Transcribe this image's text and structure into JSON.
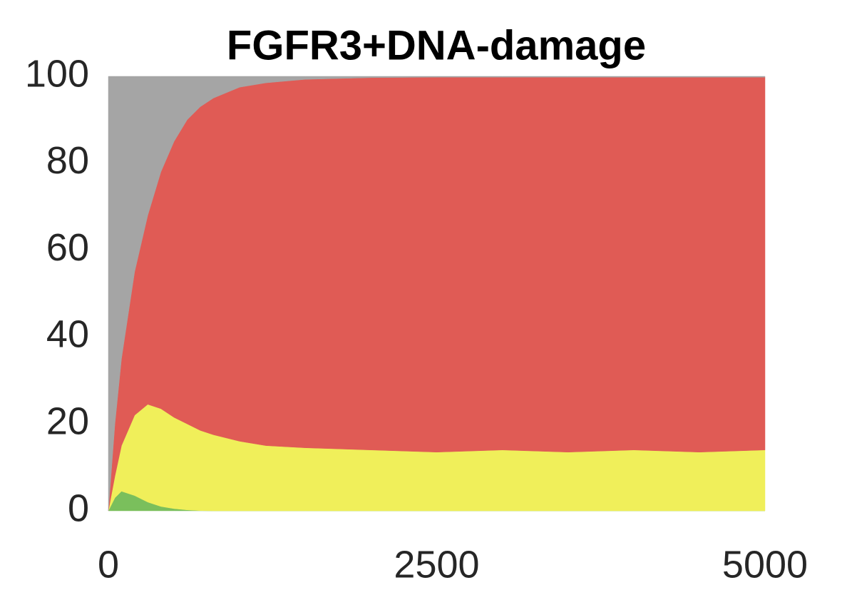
{
  "chart_data": {
    "type": "stacked-area",
    "title": "FGFR3+DNA-damage",
    "x": [
      0,
      50,
      100,
      200,
      300,
      400,
      500,
      600,
      700,
      800,
      1000,
      1200,
      1500,
      2000,
      2500,
      3000,
      3500,
      4000,
      4500,
      5000
    ],
    "series": [
      {
        "color": "#7abf5c",
        "values": [
          0,
          3,
          4.5,
          3.5,
          2,
          1,
          0.5,
          0.2,
          0.05,
          0,
          0,
          0,
          0,
          0,
          0,
          0,
          0,
          0,
          0,
          0
        ]
      },
      {
        "color": "#f0ef5a",
        "values": [
          0,
          5,
          10.5,
          18.5,
          22.5,
          22.5,
          21,
          19.8,
          18.45,
          17.5,
          16,
          15,
          14.5,
          14,
          13.5,
          14,
          13.5,
          14,
          13.5,
          14
        ]
      },
      {
        "color": "#e05b55",
        "values": [
          0,
          12,
          20,
          33,
          43.5,
          54.5,
          63.5,
          70,
          74.5,
          77.5,
          81.5,
          83.5,
          84.8,
          85.7,
          86.3,
          85.8,
          86.3,
          85.8,
          86.3,
          85.8
        ]
      },
      {
        "color": "#a5a5a5",
        "values": [
          100,
          80,
          65,
          45,
          32,
          22,
          15,
          10,
          7,
          5,
          2.5,
          1.5,
          0.7,
          0.3,
          0.2,
          0.2,
          0.2,
          0.2,
          0.2,
          0.2
        ]
      }
    ],
    "xlim": [
      0,
      5000
    ],
    "xticks": [
      0,
      2500,
      5000
    ],
    "ylim": [
      0,
      100
    ],
    "yticks": [
      0,
      20,
      40,
      60,
      80,
      100
    ],
    "grid": false
  }
}
